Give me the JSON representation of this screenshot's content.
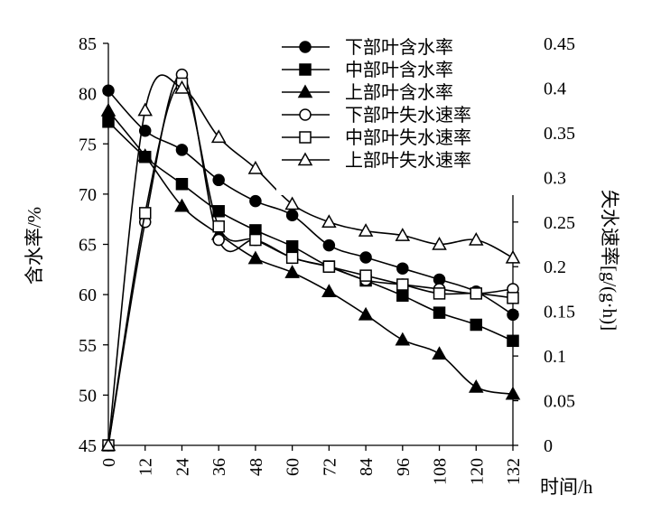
{
  "chart_data": {
    "type": "line",
    "xlabel": "时间/h",
    "ylabel_left": "含水率/%",
    "ylabel_right": "失水速率[g/(g·h)]",
    "xlim": [
      0,
      132
    ],
    "ylim_left": [
      45,
      85
    ],
    "ylim_right": [
      0,
      0.45
    ],
    "x_ticks": [
      0,
      12,
      24,
      36,
      48,
      60,
      72,
      84,
      96,
      108,
      120,
      132
    ],
    "y_left_ticks": [
      45,
      50,
      55,
      60,
      65,
      70,
      75,
      80,
      85
    ],
    "y_right_ticks": [
      "0",
      "0.05",
      "0.1",
      "0.15",
      "0.2",
      "0.25",
      "0.3",
      "0.35",
      "0.4",
      "0.45"
    ],
    "legend_position": "top-right",
    "grid": false,
    "series": [
      {
        "name": "下部叶含水率",
        "axis": "left",
        "marker": "circle",
        "filled": true,
        "x": [
          0,
          12,
          24,
          36,
          48,
          60,
          72,
          84,
          96,
          108,
          120,
          132
        ],
        "values": [
          80.3,
          76.3,
          74.4,
          71.4,
          69.3,
          67.9,
          64.9,
          63.7,
          62.6,
          61.5,
          60.3,
          58.0
        ]
      },
      {
        "name": "中部叶含水率",
        "axis": "left",
        "marker": "square",
        "filled": true,
        "x": [
          0,
          12,
          24,
          36,
          48,
          60,
          72,
          84,
          96,
          108,
          120,
          132
        ],
        "values": [
          77.2,
          73.7,
          71.0,
          68.3,
          66.4,
          64.8,
          62.8,
          61.4,
          59.9,
          58.2,
          57.0,
          55.4
        ]
      },
      {
        "name": "上部叶含水率",
        "axis": "left",
        "marker": "triangle",
        "filled": true,
        "x": [
          0,
          12,
          24,
          36,
          48,
          60,
          72,
          84,
          96,
          108,
          120,
          132
        ],
        "values": [
          78.3,
          73.8,
          68.8,
          66.0,
          63.6,
          62.2,
          60.3,
          58.0,
          55.5,
          54.1,
          50.8,
          50.1
        ]
      },
      {
        "name": "下部叶失水速率",
        "axis": "right",
        "marker": "circle",
        "filled": false,
        "x": [
          0,
          12,
          24,
          36,
          48,
          60,
          72,
          84,
          96,
          108,
          120,
          132
        ],
        "values": [
          0,
          0.25,
          0.415,
          0.23,
          0.23,
          0.21,
          0.2,
          0.185,
          0.18,
          0.175,
          0.17,
          0.175
        ]
      },
      {
        "name": "中部叶失水速率",
        "axis": "right",
        "marker": "square",
        "filled": false,
        "x": [
          0,
          12,
          24,
          36,
          48,
          60,
          72,
          84,
          96,
          108,
          120,
          132
        ],
        "values": [
          0,
          0.26,
          0.405,
          0.245,
          0.23,
          0.21,
          0.2,
          0.19,
          0.18,
          0.17,
          0.17,
          0.165
        ]
      },
      {
        "name": "上部叶失水速率",
        "axis": "right",
        "marker": "triangle",
        "filled": false,
        "x": [
          0,
          12,
          24,
          36,
          48,
          60,
          72,
          84,
          96,
          108,
          120,
          132
        ],
        "values": [
          0,
          0.375,
          0.4,
          0.345,
          0.31,
          0.27,
          0.25,
          0.24,
          0.235,
          0.225,
          0.23,
          0.21
        ]
      }
    ]
  }
}
